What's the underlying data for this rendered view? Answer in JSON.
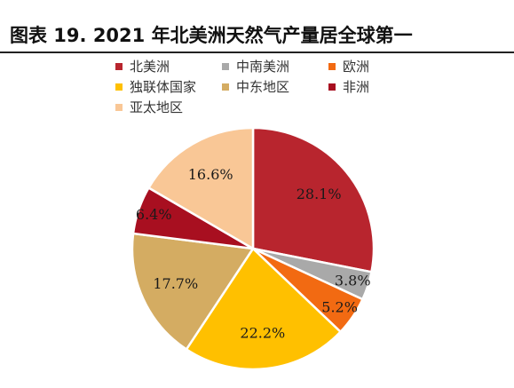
{
  "title": "图表 19. 2021 年北美洲天然气产量居全球第一",
  "chart_data": {
    "type": "pie",
    "title": "",
    "categories": [
      "北美洲",
      "中南美洲",
      "欧洲",
      "独联体国家",
      "中东地区",
      "非洲",
      "亚太地区"
    ],
    "values": [
      28.1,
      3.8,
      5.2,
      22.2,
      17.7,
      6.4,
      16.6
    ],
    "labels": [
      "28.1%",
      "3.8%",
      "5.2%",
      "22.2%",
      "17.7%",
      "6.4%",
      "16.6%"
    ],
    "colors": [
      "#b8252e",
      "#a9a9a9",
      "#f26a12",
      "#ffc000",
      "#d4ac62",
      "#a80f20",
      "#f9c796"
    ],
    "legend_position": "top"
  }
}
